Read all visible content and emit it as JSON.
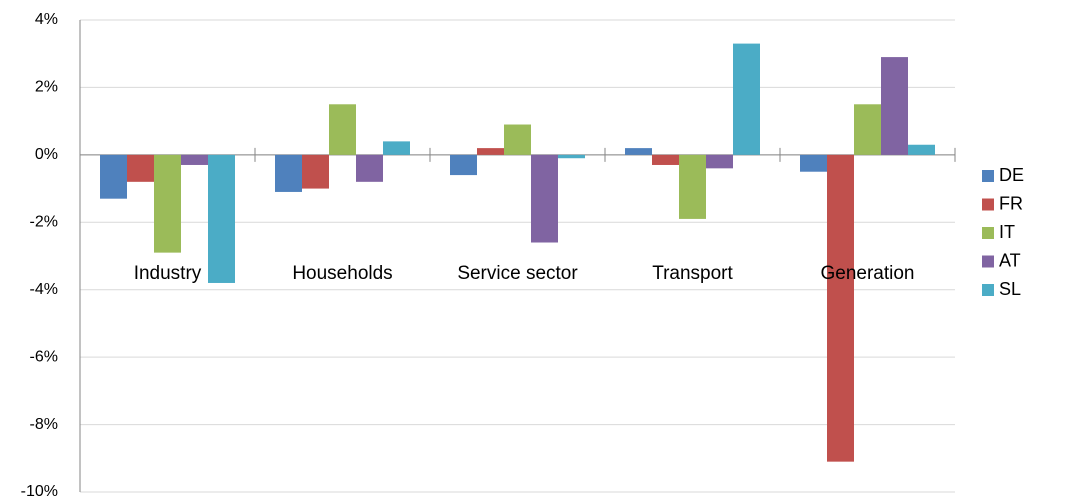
{
  "chart_data": {
    "type": "bar",
    "categories": [
      "Industry",
      "Households",
      "Service sector",
      "Transport",
      "Generation"
    ],
    "series": [
      {
        "name": "DE",
        "color": "#4f81bd",
        "values": [
          -1.3,
          -1.1,
          -0.6,
          0.2,
          -0.5
        ]
      },
      {
        "name": "FR",
        "color": "#c0504d",
        "values": [
          -0.8,
          -1.0,
          0.2,
          -0.3,
          -9.1
        ]
      },
      {
        "name": "IT",
        "color": "#9bbb59",
        "values": [
          -2.9,
          1.5,
          0.9,
          -1.9,
          1.5
        ]
      },
      {
        "name": "AT",
        "color": "#8064a2",
        "values": [
          -0.3,
          -0.8,
          -2.6,
          -0.4,
          2.9
        ]
      },
      {
        "name": "SL",
        "color": "#4bacc6",
        "values": [
          -3.8,
          0.4,
          -0.1,
          3.3,
          0.3
        ]
      }
    ],
    "ylim": [
      -10,
      4
    ],
    "yticks": [
      {
        "value": -10,
        "label": "-10%"
      },
      {
        "value": -8,
        "label": "-8%"
      },
      {
        "value": -6,
        "label": "-6%"
      },
      {
        "value": -4,
        "label": "-4%"
      },
      {
        "value": -2,
        "label": "-2%"
      },
      {
        "value": 0,
        "label": "0%"
      },
      {
        "value": 2,
        "label": "2%"
      },
      {
        "value": 4,
        "label": "4%"
      }
    ],
    "grid": true,
    "legend": "right"
  }
}
